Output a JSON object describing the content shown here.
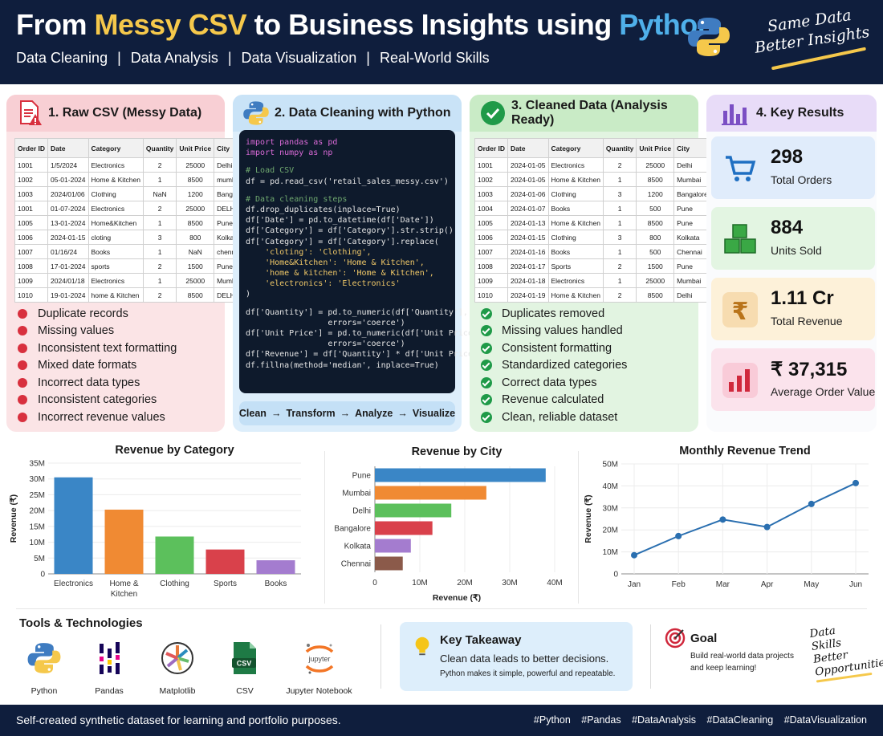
{
  "header": {
    "title_part1": "From ",
    "title_part2": "Messy CSV",
    "title_part3": " to Business Insights using ",
    "title_part4": "Python",
    "subtitle": [
      "Data Cleaning",
      "Data Analysis",
      "Data Visualization",
      "Real-World Skills"
    ],
    "tagline_1": "Same Data",
    "tagline_2": "Better Insights",
    "logo_icon": "python-logo-icon",
    "colors": {
      "bg": "#0f1e3d",
      "yellow": "#f5c84b",
      "blue": "#4fb0ea"
    }
  },
  "panel1": {
    "title": "1. Raw CSV (Messy Data)",
    "icon": "csv-error-icon",
    "headers": [
      "Order ID",
      "Date",
      "Category",
      "Quantity",
      "Unit Price",
      "City"
    ],
    "rows": [
      [
        "1001",
        "1/5/2024",
        "Electronics",
        "2",
        "25000",
        "Delhi"
      ],
      [
        "1002",
        "05-01-2024",
        "Home & Kitchen",
        "1",
        "8500",
        "mumbai"
      ],
      [
        "1003",
        "2024/01/06",
        "Clothing",
        "NaN",
        "1200",
        "Bangalore"
      ],
      [
        "1001",
        "01-07-2024",
        "Electronics",
        "2",
        "25000",
        "DELHI"
      ],
      [
        "1005",
        "13-01-2024",
        "Home&Kitchen",
        "1",
        "8500",
        "Pune"
      ],
      [
        "1006",
        "2024-01-15",
        "cloting",
        "3",
        "800",
        "Kolkata"
      ],
      [
        "1007",
        "01/16/24",
        "Books",
        "1",
        "NaN",
        "chennai"
      ],
      [
        "1008",
        "17-01-2024",
        "sports",
        "2",
        "1500",
        "Pune"
      ],
      [
        "1009",
        "2024/01/18",
        "Electronics",
        "1",
        "25000",
        "Mumbai"
      ],
      [
        "1010",
        "19-01-2024",
        "home & Kitchen",
        "2",
        "8500",
        "DELHI"
      ]
    ],
    "issues": [
      "Duplicate records",
      "Missing values",
      "Inconsistent text formatting",
      "Mixed date formats",
      "Incorrect data types",
      "Inconsistent categories",
      "Incorrect revenue values"
    ]
  },
  "panel2": {
    "title": "2. Data Cleaning with Python",
    "icon": "python-logo-icon",
    "code": {
      "l1": "import pandas as pd",
      "l2": "import numpy as np",
      "l3": "# Load CSV",
      "l4": "df = pd.read_csv('retail_sales_messy.csv')",
      "l5": "# Data cleaning steps",
      "l6": "df.drop_duplicates(inplace=True)",
      "l7": "df['Date'] = pd.to_datetime(df['Date'])",
      "l8": "df['Category'] = df['Category'].str.strip()",
      "l9": "df['Category'] = df['Category'].replace(",
      "l10": "    'cloting': 'Clothing',",
      "l11": "    'Home&Kitchen': 'Home & Kitchen',",
      "l12": "    'home & kitchen': 'Home & Kitchen',",
      "l13": "    'electronics': 'Electronics'",
      "l14": ")",
      "l15": "df['Quantity'] = pd.to_numeric(df['Quantity'],",
      "l16": "                 errors='coerce')",
      "l17": "df['Unit Price'] = pd.to_numeric(df['Unit Price'],",
      "l18": "                 errors='coerce')",
      "l19": "df['Revenue'] = df['Quantity'] * df['Unit Price']",
      "l20": "df.fillna(method='median', inplace=True)"
    },
    "pipeline": [
      "Clean",
      "Transform",
      "Analyze",
      "Visualize"
    ]
  },
  "panel3": {
    "title": "3. Cleaned Data (Analysis Ready)",
    "icon": "check-circle-icon",
    "headers": [
      "Order ID",
      "Date",
      "Category",
      "Quantity",
      "Unit Price",
      "City"
    ],
    "rows": [
      [
        "1001",
        "2024-01-05",
        "Electronics",
        "2",
        "25000",
        "Delhi"
      ],
      [
        "1002",
        "2024-01-05",
        "Home & Kitchen",
        "1",
        "8500",
        "Mumbai"
      ],
      [
        "1003",
        "2024-01-06",
        "Clothing",
        "3",
        "1200",
        "Bangalore"
      ],
      [
        "1004",
        "2024-01-07",
        "Books",
        "1",
        "500",
        "Pune"
      ],
      [
        "1005",
        "2024-01-13",
        "Home & Kitchen",
        "1",
        "8500",
        "Pune"
      ],
      [
        "1006",
        "2024-01-15",
        "Clothing",
        "3",
        "800",
        "Kolkata"
      ],
      [
        "1007",
        "2024-01-16",
        "Books",
        "1",
        "500",
        "Chennai"
      ],
      [
        "1008",
        "2024-01-17",
        "Sports",
        "2",
        "1500",
        "Pune"
      ],
      [
        "1009",
        "2024-01-18",
        "Electronics",
        "1",
        "25000",
        "Mumbai"
      ],
      [
        "1010",
        "2024-01-19",
        "Home & Kitchen",
        "2",
        "8500",
        "Delhi"
      ]
    ],
    "fixes": [
      "Duplicates removed",
      "Missing values handled",
      "Consistent formatting",
      "Standardized categories",
      "Correct data types",
      "Revenue calculated",
      "Clean, reliable dataset"
    ]
  },
  "panel4": {
    "title": "4. Key Results",
    "icon": "bar-chart-icon",
    "results": [
      {
        "value": "298",
        "label": "Total Orders",
        "icon": "cart-icon"
      },
      {
        "value": "884",
        "label": "Units Sold",
        "icon": "boxes-icon"
      },
      {
        "value": "1.11 Cr",
        "label": "Total Revenue",
        "icon": "rupee-icon"
      },
      {
        "value": "₹ 37,315",
        "label": "Average Order Value",
        "icon": "bar-chart-icon"
      }
    ]
  },
  "chart_data": [
    {
      "type": "bar",
      "title": "Revenue by Category",
      "ylabel": "Revenue (₹)",
      "xlabel": "",
      "categories": [
        "Electronics",
        "Home & Kitchen",
        "Clothing",
        "Sports",
        "Books"
      ],
      "values": [
        30500000,
        20300000,
        11800000,
        7700000,
        4300000
      ],
      "ylim": [
        0,
        35000000
      ],
      "yticks": [
        "0",
        "5M",
        "10M",
        "15M",
        "20M",
        "25M",
        "30M",
        "35M"
      ],
      "colors": [
        "#3a86c6",
        "#f08a33",
        "#5cc05c",
        "#d9414b",
        "#a47ccf"
      ],
      "grid": true
    },
    {
      "type": "bar",
      "orientation": "horizontal",
      "title": "Revenue by City",
      "xlabel": "Revenue (₹)",
      "ylabel": "",
      "categories": [
        "Pune",
        "Mumbai",
        "Delhi",
        "Bangalore",
        "Kolkata",
        "Chennai"
      ],
      "values": [
        38000000,
        24800000,
        17000000,
        12800000,
        8000000,
        6200000
      ],
      "xlim": [
        0,
        40000000
      ],
      "xticks": [
        "0",
        "10M",
        "20M",
        "30M",
        "40M"
      ],
      "colors": [
        "#3a86c6",
        "#f08a33",
        "#5cc05c",
        "#d9414b",
        "#a47ccf",
        "#8b5a4a"
      ],
      "grid": true
    },
    {
      "type": "line",
      "title": "Monthly Revenue Trend",
      "ylabel": "Revenue (₹)",
      "xlabel": "",
      "x": [
        "Jan",
        "Feb",
        "Mar",
        "Apr",
        "May",
        "Jun"
      ],
      "values": [
        8500000,
        17200000,
        24700000,
        21300000,
        31800000,
        41300000
      ],
      "ylim": [
        0,
        50000000
      ],
      "yticks": [
        "0",
        "10M",
        "20M",
        "30M",
        "40M",
        "50M"
      ],
      "color": "#2a6fb0",
      "grid": true
    }
  ],
  "tools": {
    "title": "Tools & Technologies",
    "items": [
      {
        "label": "Python",
        "icon": "python-logo-icon"
      },
      {
        "label": "Pandas",
        "icon": "pandas-icon"
      },
      {
        "label": "Matplotlib",
        "icon": "matplotlib-icon"
      },
      {
        "label": "CSV",
        "icon": "csv-file-icon"
      },
      {
        "label": "Jupyter Notebook",
        "icon": "jupyter-icon"
      }
    ]
  },
  "takeaway": {
    "title": "Key Takeaway",
    "line1": "Clean data leads to better decisions.",
    "line2": "Python makes it simple, powerful and repeatable.",
    "icon": "lightbulb-icon"
  },
  "goal": {
    "title": "Goal",
    "text": "Build real-world data projects and keep learning!",
    "icon": "target-icon"
  },
  "motto": [
    "Data",
    "Skills",
    "Better",
    "Opportunities"
  ],
  "footer": {
    "left": "Self-created synthetic dataset for learning and portfolio purposes.",
    "tags": [
      "#Python",
      "#Pandas",
      "#DataAnalysis",
      "#DataCleaning",
      "#DataVisualization"
    ]
  }
}
